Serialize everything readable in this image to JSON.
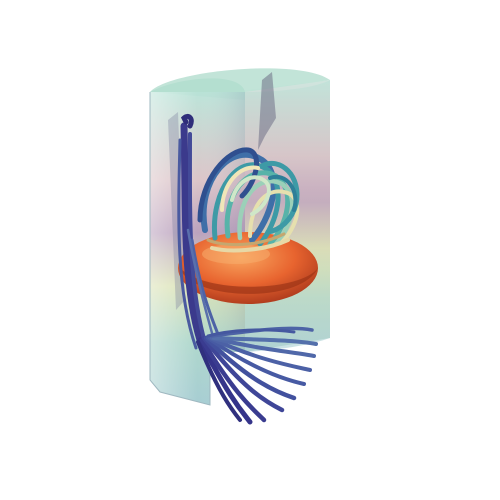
{
  "scene": {
    "description_visible_text": "",
    "background_color": "#ffffff",
    "colors": {
      "shell_teal": "#9fd6c6",
      "shell_pink": "#c9a6b5",
      "shell_purple": "#8a87b3",
      "shell_yellow": "#dfe0a6",
      "isosurface_orange": "#e8642f",
      "isosurface_highlight": "#f7a25f",
      "isosurface_shadow": "#a8361b",
      "stream_dark_blue": "#3b3a8c",
      "stream_mid_blue": "#3f6fa8",
      "stream_teal": "#3d9aa6",
      "stream_cream": "#f0e6b8"
    },
    "objects": [
      {
        "name": "cut-cylinder-shell"
      },
      {
        "name": "orange-isosurface-disk"
      },
      {
        "name": "vortex-streamtubes"
      },
      {
        "name": "inflow-streamtubes"
      },
      {
        "name": "outflow-fan-streamtubes"
      }
    ]
  }
}
